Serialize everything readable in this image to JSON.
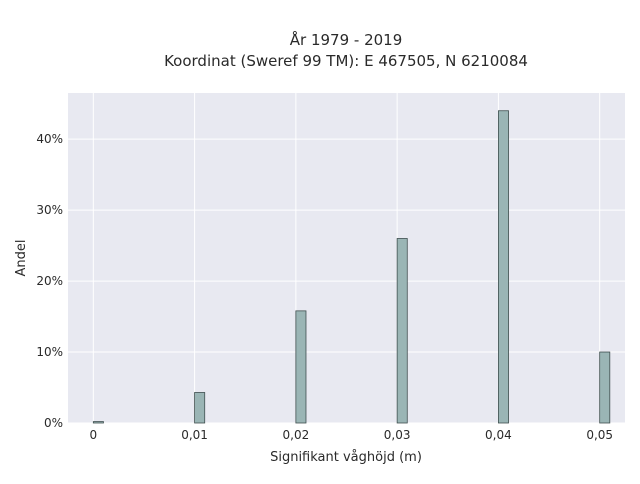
{
  "chart_data": {
    "type": "bar",
    "title_line1": "År 1979 - 2019",
    "title_line2": "Koordinat (Sweref 99 TM): E 467505, N 6210084",
    "xlabel": "Signifikant våghöjd (m)",
    "ylabel": "Andel",
    "x": [
      0,
      0.01,
      0.02,
      0.03,
      0.04,
      0.05
    ],
    "values": [
      0.2,
      4.3,
      15.8,
      26.0,
      44.0,
      10.0
    ],
    "x_ticks": [
      "0",
      "0,01",
      "0,02",
      "0,03",
      "0,04",
      "0,05"
    ],
    "y_ticks": [
      "0%",
      "10%",
      "20%",
      "30%",
      "40%"
    ],
    "y_tick_values": [
      0,
      10,
      20,
      30,
      40
    ],
    "xlim": [
      -0.0025,
      0.0525
    ],
    "ylim": [
      0,
      46.5
    ],
    "grid": true,
    "colors": {
      "plot_background": "#e8e9f1",
      "bar_fill": "#9ab5b5",
      "bar_edge": "#3f4f4f",
      "grid": "#ffffff"
    }
  }
}
